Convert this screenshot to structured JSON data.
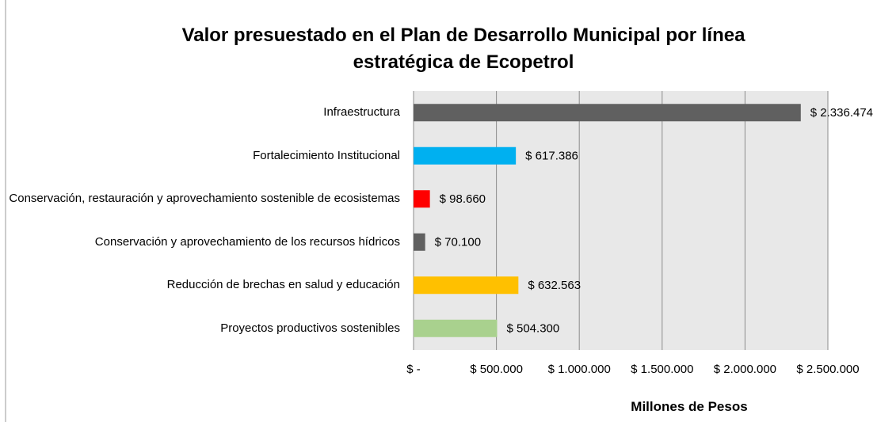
{
  "chart_data": {
    "type": "barh",
    "title": "Valor presuestado en el Plan de Desarrollo Municipal por línea estratégica de Ecopetrol",
    "x_label": "Millones de Pesos",
    "categories": [
      "Infraestructura",
      "Fortalecimiento Institucional",
      "Conservación, restauración y aprovechamiento sostenible de ecosistemas",
      "Conservación y aprovechamiento de los recursos hídricos",
      "Reducción de brechas en salud y educación",
      "Proyectos productivos sostenibles"
    ],
    "values": [
      2336474,
      617386,
      98660,
      70100,
      632563,
      504300
    ],
    "value_labels": [
      "$ 2.336.474",
      "$ 617.386",
      "$ 98.660",
      "$ 70.100",
      "$ 632.563",
      "$ 504.300"
    ],
    "colors": [
      "#606060",
      "#00b0f0",
      "#ff0000",
      "#606060",
      "#ffc000",
      "#a9d18e"
    ],
    "xlim": [
      0,
      2500000
    ],
    "xticks": [
      {
        "value": 0,
        "label": "$ -"
      },
      {
        "value": 500000,
        "label": "$ 500.000"
      },
      {
        "value": 1000000,
        "label": "$ 1.000.000"
      },
      {
        "value": 1500000,
        "label": "$ 1.500.000"
      },
      {
        "value": 2000000,
        "label": "$ 2.000.000"
      },
      {
        "value": 2500000,
        "label": "$ 2.500.000"
      }
    ],
    "grid": true
  }
}
